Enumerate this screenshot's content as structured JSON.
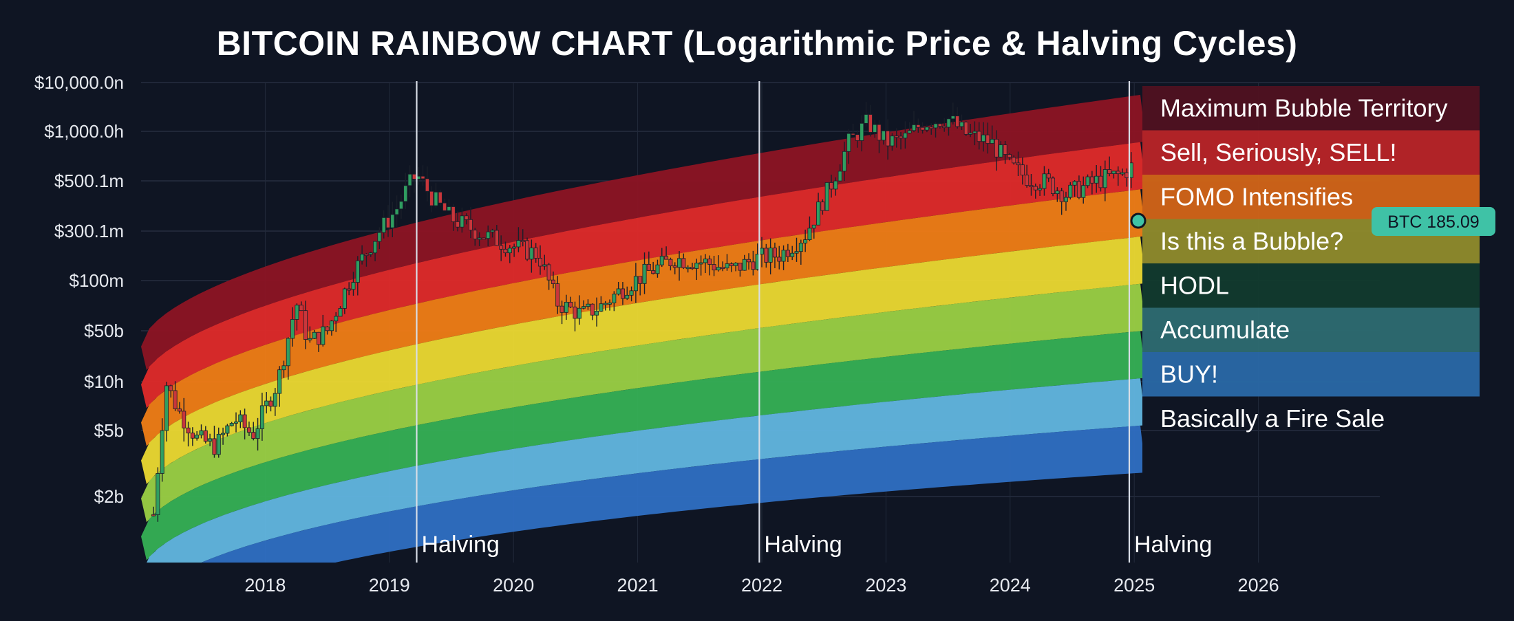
{
  "title": "BITCOIN RAINBOW CHART (Logarithmic Price & Halving Cycles)",
  "chart_data": {
    "type": "candlestick",
    "title": "BITCOIN RAINBOW CHART (Logarithmic Price & Halving Cycles)",
    "xlabel": "",
    "ylabel": "",
    "y_scale": "log",
    "y_tick_labels": [
      "$10,000.0n",
      "$1,000.0h",
      "$500.1m",
      "$300.1m",
      "$100m",
      "$50b",
      "$10h",
      "$5b",
      "$2b"
    ],
    "x_tick_labels": [
      "2018",
      "2019",
      "2020",
      "2021",
      "2022",
      "2023",
      "2024",
      "2025",
      "2026"
    ],
    "grid": true,
    "legend_position": "right",
    "halving_label": "Halving",
    "halvings": [
      2019.22,
      2021.98,
      2024.96
    ],
    "bands": [
      {
        "name": "Maximum Bubble Territory",
        "color": "#8d1424",
        "legend_bg": "#4f1220"
      },
      {
        "name": "Sell, Seriously, SELL!",
        "color": "#e02a2a",
        "legend_bg": "#b72428"
      },
      {
        "name": "FOMO Intensifies",
        "color": "#f07d16",
        "legend_bg": "#d06418"
      },
      {
        "name": "Is this a Bubble?",
        "color": "#ecd931",
        "legend_bg": "#8f8a2c"
      },
      {
        "name": "HODL",
        "color": "#9bd045",
        "legend_bg": "#123a2e"
      },
      {
        "name": "Accumulate",
        "color": "#36b055",
        "legend_bg": "#2e6b70"
      },
      {
        "name": "BUY!",
        "color": "#62b6e0",
        "legend_bg": "#2a68a6"
      },
      {
        "name": "Basically a Fire Sale",
        "color": "#2f6fc3",
        "legend_bg": ""
      }
    ],
    "price_series": {
      "name": "BTC",
      "up_color": "#2f9e61",
      "down_color": "#c9363b",
      "close_path": [
        [
          2017.1,
          1.2
        ],
        [
          2017.2,
          4.5
        ],
        [
          2017.3,
          3.8
        ],
        [
          2017.45,
          3.1
        ],
        [
          2017.6,
          2.9
        ],
        [
          2017.75,
          3.6
        ],
        [
          2017.9,
          3.2
        ],
        [
          2018.1,
          4.5
        ],
        [
          2018.25,
          6.5
        ],
        [
          2018.35,
          5.5
        ],
        [
          2018.5,
          5.8
        ],
        [
          2018.7,
          7.2
        ],
        [
          2018.9,
          8.2
        ],
        [
          2019.05,
          8.8
        ],
        [
          2019.15,
          9.4
        ],
        [
          2019.22,
          9.7
        ],
        [
          2019.35,
          9.1
        ],
        [
          2019.5,
          8.6
        ],
        [
          2019.75,
          8.2
        ],
        [
          2020.0,
          7.9
        ],
        [
          2020.2,
          7.7
        ],
        [
          2020.35,
          6.5
        ],
        [
          2020.55,
          6.2
        ],
        [
          2020.7,
          6.4
        ],
        [
          2020.9,
          6.9
        ],
        [
          2021.05,
          7.2
        ],
        [
          2021.3,
          7.6
        ],
        [
          2021.55,
          7.5
        ],
        [
          2021.75,
          7.3
        ],
        [
          2021.95,
          7.6
        ],
        [
          2022.15,
          7.7
        ],
        [
          2022.35,
          8.2
        ],
        [
          2022.55,
          9.4
        ],
        [
          2022.7,
          10.5
        ],
        [
          2022.85,
          11.0
        ],
        [
          2023.0,
          10.5
        ],
        [
          2023.15,
          10.6
        ],
        [
          2023.3,
          11.0
        ],
        [
          2023.5,
          11.1
        ],
        [
          2023.65,
          10.7
        ],
        [
          2023.85,
          10.5
        ],
        [
          2024.0,
          9.9
        ],
        [
          2024.15,
          9.6
        ],
        [
          2024.3,
          9.5
        ],
        [
          2024.45,
          9.2
        ],
        [
          2024.6,
          9.4
        ],
        [
          2024.75,
          9.6
        ],
        [
          2024.9,
          9.7
        ],
        [
          2025.0,
          9.95
        ]
      ]
    },
    "current_price": {
      "label": "BTC 185.09",
      "value": 185.09,
      "color": "#3fc2a6"
    }
  }
}
